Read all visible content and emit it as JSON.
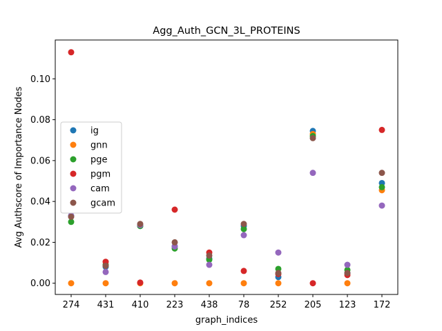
{
  "chart_data": {
    "type": "scatter",
    "title": "Agg_Auth_GCN_3L_PROTEINS",
    "xlabel": "graph_indices",
    "ylabel": "Avg Authscore of Importance Nodes",
    "categories": [
      "274",
      "431",
      "410",
      "223",
      "438",
      "78",
      "252",
      "205",
      "123",
      "172"
    ],
    "ylim": [
      -0.0055,
      0.119
    ],
    "yticks": [
      0.0,
      0.02,
      0.04,
      0.06,
      0.08,
      0.1
    ],
    "ytick_labels": [
      "0.00",
      "0.02",
      "0.04",
      "0.06",
      "0.08",
      "0.10"
    ],
    "grid": false,
    "legend_position": "center-left",
    "series": [
      {
        "name": "ig",
        "color": "#1f77b4",
        "values": [
          0.033,
          0.008,
          0.028,
          0.018,
          0.012,
          0.028,
          0.003,
          0.0745,
          0.005,
          0.049
        ]
      },
      {
        "name": "gnn",
        "color": "#ff7f0e",
        "values": [
          0.0,
          0.0,
          0.0,
          0.0,
          0.0,
          0.0,
          0.0,
          0.073,
          0.0,
          0.0455
        ]
      },
      {
        "name": "pge",
        "color": "#2ca02c",
        "values": [
          0.03,
          0.009,
          0.028,
          0.017,
          0.0115,
          0.0265,
          0.007,
          0.072,
          0.0065,
          0.047
        ]
      },
      {
        "name": "pgm",
        "color": "#d62728",
        "values": [
          0.113,
          0.0105,
          0.0003,
          0.036,
          0.015,
          0.006,
          0.0045,
          0.0,
          0.004,
          0.075
        ]
      },
      {
        "name": "cam",
        "color": "#9467bd",
        "values": [
          0.033,
          0.0055,
          0.0285,
          0.018,
          0.009,
          0.0235,
          0.015,
          0.054,
          0.009,
          0.038
        ]
      },
      {
        "name": "gcam",
        "color": "#8c564b",
        "values": [
          0.0325,
          0.0085,
          0.029,
          0.02,
          0.0135,
          0.029,
          0.005,
          0.071,
          0.005,
          0.054
        ]
      }
    ]
  }
}
